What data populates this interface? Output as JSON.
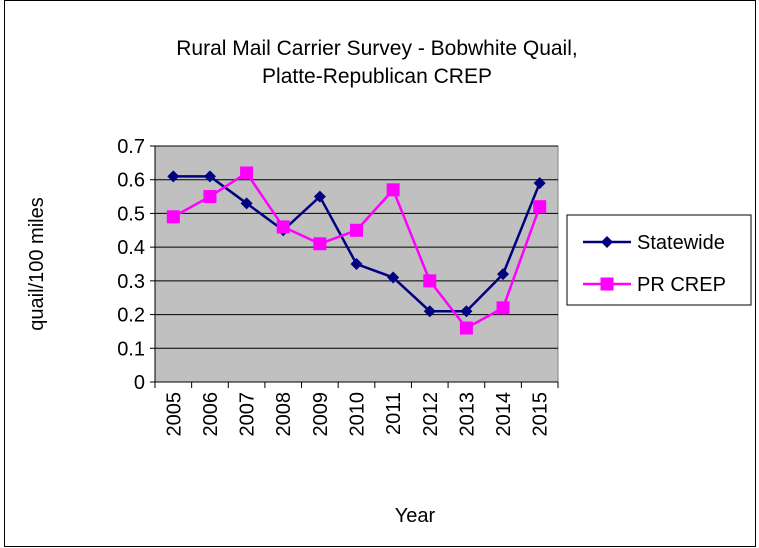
{
  "chart_data": {
    "type": "line",
    "title": [
      "Rural Mail Carrier Survey - Bobwhite Quail,",
      "Platte-Republican CREP"
    ],
    "xlabel": "Year",
    "ylabel": "quail/100 miles",
    "categories": [
      "2005",
      "2006",
      "2007",
      "2008",
      "2009",
      "2010",
      "2011",
      "2012",
      "2013",
      "2014",
      "2015"
    ],
    "ylim": [
      0,
      0.7
    ],
    "yticks": [
      "0",
      "0.1",
      "0.2",
      "0.3",
      "0.4",
      "0.5",
      "0.6",
      "0.7"
    ],
    "grid": true,
    "legend_position": "right",
    "plot_background": "#c0c0c0",
    "series": [
      {
        "name": "Statewide",
        "color": "#000080",
        "marker": "diamond",
        "values": [
          0.61,
          0.61,
          0.53,
          0.45,
          0.55,
          0.35,
          0.31,
          0.21,
          0.21,
          0.32,
          0.59
        ]
      },
      {
        "name": "PR CREP",
        "color": "#ff00ff",
        "marker": "square",
        "values": [
          0.49,
          0.55,
          0.62,
          0.46,
          0.41,
          0.45,
          0.57,
          0.3,
          0.16,
          0.22,
          0.52
        ]
      }
    ]
  }
}
